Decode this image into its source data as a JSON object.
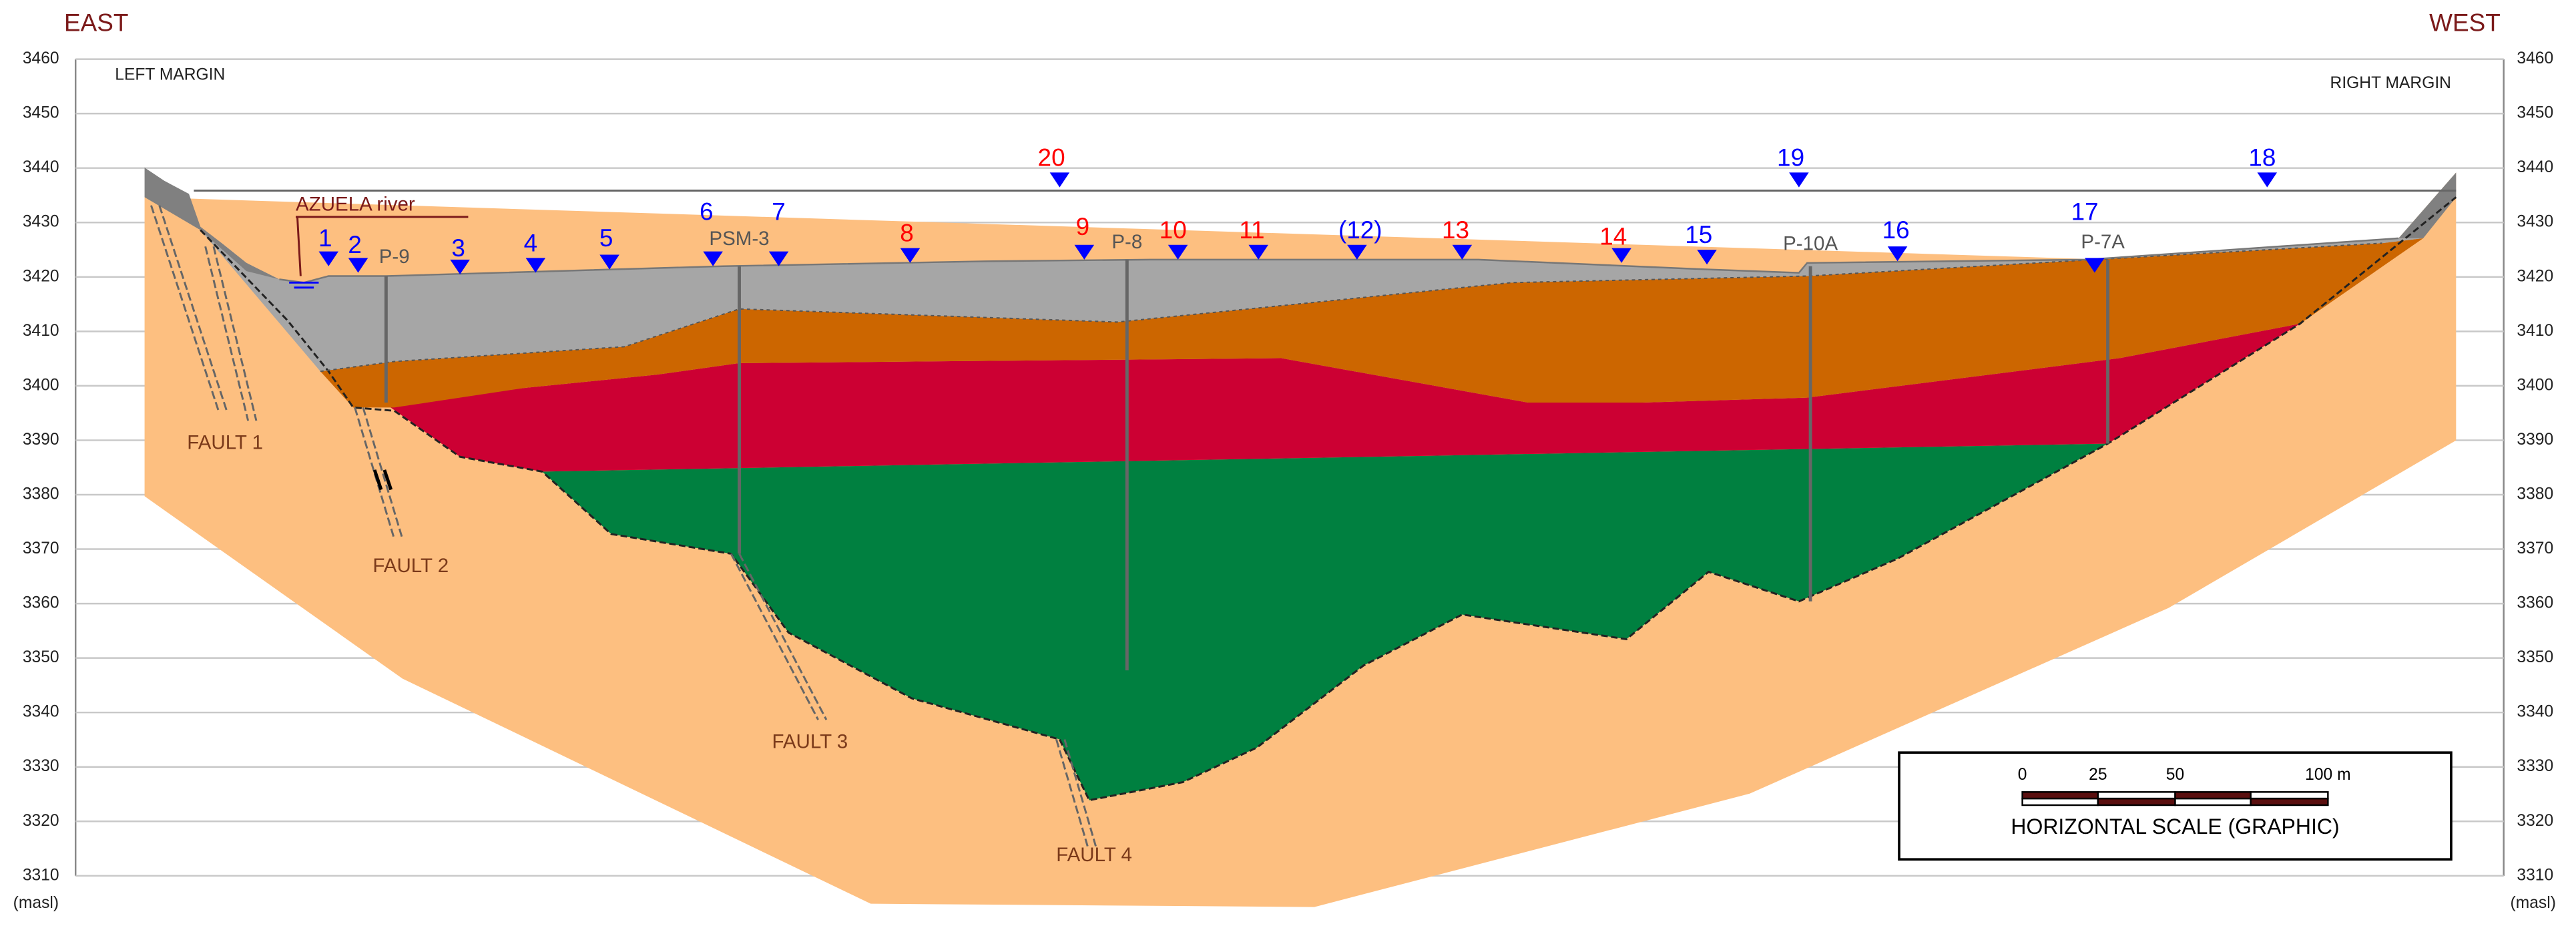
{
  "header": {
    "left": "EAST",
    "right": "WEST"
  },
  "margins": {
    "left": "LEFT MARGIN",
    "right": "RIGHT MARGIN"
  },
  "axis": {
    "ylim": [
      3310,
      3460
    ],
    "yticks": [
      3310,
      3320,
      3330,
      3340,
      3350,
      3360,
      3370,
      3380,
      3390,
      3400,
      3410,
      3420,
      3430,
      3440,
      3450,
      3460
    ],
    "unit": "(masl)"
  },
  "river": "AZUELA river",
  "boreholes": [
    "P-9",
    "PSM-3",
    "P-8",
    "P-10A",
    "P-7A"
  ],
  "points": [
    {
      "label": "1",
      "color": "#0000ff"
    },
    {
      "label": "2",
      "color": "#0000ff"
    },
    {
      "label": "3",
      "color": "#0000ff"
    },
    {
      "label": "4",
      "color": "#0000ff"
    },
    {
      "label": "5",
      "color": "#0000ff"
    },
    {
      "label": "6",
      "color": "#0000ff"
    },
    {
      "label": "7",
      "color": "#0000ff"
    },
    {
      "label": "8",
      "color": "#ff0000"
    },
    {
      "label": "9",
      "color": "#ff0000"
    },
    {
      "label": "10",
      "color": "#ff0000"
    },
    {
      "label": "11",
      "color": "#ff0000"
    },
    {
      "label": "(12)",
      "color": "#0000ff"
    },
    {
      "label": "13",
      "color": "#ff0000"
    },
    {
      "label": "14",
      "color": "#ff0000"
    },
    {
      "label": "15",
      "color": "#0000ff"
    },
    {
      "label": "16",
      "color": "#0000ff"
    },
    {
      "label": "17",
      "color": "#0000ff"
    },
    {
      "label": "18",
      "color": "#0000ff"
    },
    {
      "label": "19",
      "color": "#0000ff"
    },
    {
      "label": "20",
      "color": "#ff0000"
    }
  ],
  "faults": [
    "FAULT 1",
    "FAULT 2",
    "FAULT 3",
    "FAULT 4"
  ],
  "scale": {
    "ticks": [
      "0",
      "25",
      "50",
      "100 m"
    ],
    "title": "HORIZONTAL SCALE (GRAPHIC)"
  }
}
